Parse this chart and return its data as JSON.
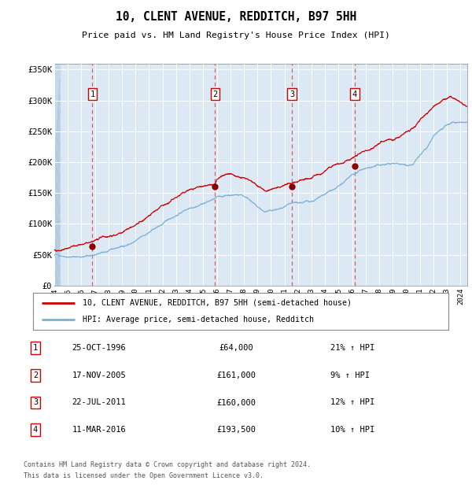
{
  "title": "10, CLENT AVENUE, REDDITCH, B97 5HH",
  "subtitle": "Price paid vs. HM Land Registry's House Price Index (HPI)",
  "legend_line1": "10, CLENT AVENUE, REDDITCH, B97 5HH (semi-detached house)",
  "legend_line2": "HPI: Average price, semi-detached house, Redditch",
  "footer_line1": "Contains HM Land Registry data © Crown copyright and database right 2024.",
  "footer_line2": "This data is licensed under the Open Government Licence v3.0.",
  "transactions": [
    {
      "num": 1,
      "date": "25-OCT-1996",
      "price": 64000,
      "pct": "21%",
      "year_x": 1996.81
    },
    {
      "num": 2,
      "date": "17-NOV-2005",
      "price": 161000,
      "pct": "9%",
      "year_x": 2005.88
    },
    {
      "num": 3,
      "date": "22-JUL-2011",
      "price": 160000,
      "pct": "12%",
      "year_x": 2011.55
    },
    {
      "num": 4,
      "date": "11-MAR-2016",
      "price": 193500,
      "pct": "10%",
      "year_x": 2016.19
    }
  ],
  "ylim": [
    0,
    360000
  ],
  "xlim_start": 1994.0,
  "xlim_end": 2024.5,
  "yticks": [
    0,
    50000,
    100000,
    150000,
    200000,
    250000,
    300000,
    350000
  ],
  "ytick_labels": [
    "£0",
    "£50K",
    "£100K",
    "£150K",
    "£200K",
    "£250K",
    "£300K",
    "£350K"
  ],
  "bg_color": "#dce9f5",
  "grid_color": "#ffffff",
  "line_red": "#cc0000",
  "line_blue": "#7ab0d4",
  "dashed_red": "#dd4444",
  "label_box_color": "#ffffff",
  "label_box_edge": "#cc0000",
  "hpi_anchors_t": [
    1994,
    1995,
    1996,
    1997,
    1998,
    1999,
    2000,
    2001,
    2002,
    2003,
    2004,
    2005,
    2006,
    2007,
    2007.8,
    2008.5,
    2009,
    2009.5,
    2010,
    2011,
    2011.5,
    2012,
    2013,
    2014,
    2015,
    2016,
    2017,
    2018,
    2019,
    2020,
    2020.5,
    2021,
    2021.5,
    2022,
    2022.5,
    2023,
    2023.5,
    2024,
    2024.5
  ],
  "hpi_anchors_v": [
    49000,
    50000,
    51000,
    55000,
    60000,
    67000,
    76000,
    90000,
    103000,
    118000,
    132000,
    143000,
    152000,
    157000,
    159000,
    152000,
    140000,
    132000,
    133000,
    137000,
    140000,
    140000,
    143000,
    152000,
    165000,
    180000,
    192000,
    197000,
    200000,
    198000,
    202000,
    215000,
    225000,
    242000,
    252000,
    258000,
    262000,
    263000,
    265000
  ],
  "prop_anchors_t": [
    1994,
    1995,
    1996,
    1996.81,
    1997,
    1998,
    1999,
    2000,
    2001,
    2002,
    2003,
    2004,
    2005,
    2005.88,
    2006,
    2006.5,
    2007,
    2007.5,
    2008,
    2008.5,
    2009,
    2009.5,
    2010,
    2011,
    2011.55,
    2012,
    2013,
    2014,
    2015,
    2016,
    2016.19,
    2017,
    2018,
    2019,
    2020,
    2020.5,
    2021,
    2021.5,
    2022,
    2022.5,
    2023,
    2023.3,
    2023.6,
    2024,
    2024.5
  ],
  "prop_anchors_v": [
    58000,
    60000,
    62000,
    64000,
    66000,
    72000,
    82000,
    93000,
    108000,
    122000,
    138000,
    152000,
    158000,
    161000,
    168000,
    175000,
    178000,
    175000,
    168000,
    162000,
    155000,
    150000,
    152000,
    158000,
    160000,
    162000,
    168000,
    178000,
    190000,
    193000,
    193500,
    205000,
    218000,
    228000,
    238000,
    245000,
    258000,
    270000,
    285000,
    293000,
    298000,
    300000,
    297000,
    292000,
    290000
  ]
}
